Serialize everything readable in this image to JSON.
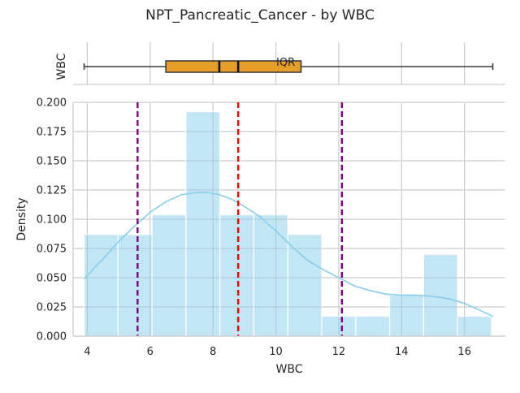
{
  "title": "NPT_Pancreatic_Cancer - by WBC",
  "chart_data": [
    {
      "type": "box",
      "ylabel": "WBC",
      "min": 3.9,
      "q1": 6.5,
      "median": 8.2,
      "mean": 8.8,
      "q3": 10.8,
      "max": 16.9,
      "annotation": "IQR",
      "annotation_x": 10.0,
      "box_color": "#e69f26",
      "xlim": [
        3.55,
        17.3
      ]
    },
    {
      "type": "histogram",
      "xlabel": "WBC",
      "ylabel": "Density",
      "xlim": [
        3.55,
        17.3
      ],
      "ylim": [
        0,
        0.2
      ],
      "xticks": [
        4,
        6,
        8,
        10,
        12,
        14,
        16
      ],
      "yticks": [
        "0.000",
        "0.025",
        "0.050",
        "0.075",
        "0.100",
        "0.125",
        "0.150",
        "0.175",
        "0.200"
      ],
      "grid": true,
      "bar_color": "#87ceeb",
      "bins": [
        {
          "x0": 3.9,
          "x1": 4.98,
          "density": 0.087
        },
        {
          "x0": 4.98,
          "x1": 6.06,
          "density": 0.087
        },
        {
          "x0": 6.06,
          "x1": 7.14,
          "density": 0.104
        },
        {
          "x0": 7.14,
          "x1": 8.22,
          "density": 0.192
        },
        {
          "x0": 8.22,
          "x1": 9.3,
          "density": 0.104
        },
        {
          "x0": 9.3,
          "x1": 10.38,
          "density": 0.104
        },
        {
          "x0": 10.38,
          "x1": 11.46,
          "density": 0.087
        },
        {
          "x0": 11.46,
          "x1": 12.54,
          "density": 0.017
        },
        {
          "x0": 12.54,
          "x1": 13.62,
          "density": 0.017
        },
        {
          "x0": 13.62,
          "x1": 14.7,
          "density": 0.035
        },
        {
          "x0": 14.7,
          "x1": 15.78,
          "density": 0.07
        },
        {
          "x0": 15.78,
          "x1": 16.86,
          "density": 0.017
        }
      ],
      "kde": {
        "x": [
          3.9,
          4.5,
          5.0,
          5.5,
          6.0,
          6.5,
          7.0,
          7.5,
          7.8,
          8.2,
          8.6,
          9.0,
          9.5,
          10.0,
          10.5,
          11.0,
          11.5,
          12.0,
          12.5,
          13.0,
          13.5,
          14.0,
          14.5,
          15.0,
          15.5,
          16.0,
          16.5,
          16.9
        ],
        "y": [
          0.049,
          0.066,
          0.081,
          0.094,
          0.106,
          0.115,
          0.121,
          0.123,
          0.123,
          0.121,
          0.117,
          0.111,
          0.102,
          0.09,
          0.077,
          0.065,
          0.057,
          0.05,
          0.043,
          0.039,
          0.036,
          0.035,
          0.035,
          0.034,
          0.032,
          0.028,
          0.022,
          0.017
        ]
      },
      "kde_color": "#87ceeb",
      "reference_lines": [
        {
          "x": 5.6,
          "color": "#800080"
        },
        {
          "x": 8.8,
          "color": "#ff0000"
        },
        {
          "x": 12.1,
          "color": "#800080"
        }
      ]
    }
  ]
}
